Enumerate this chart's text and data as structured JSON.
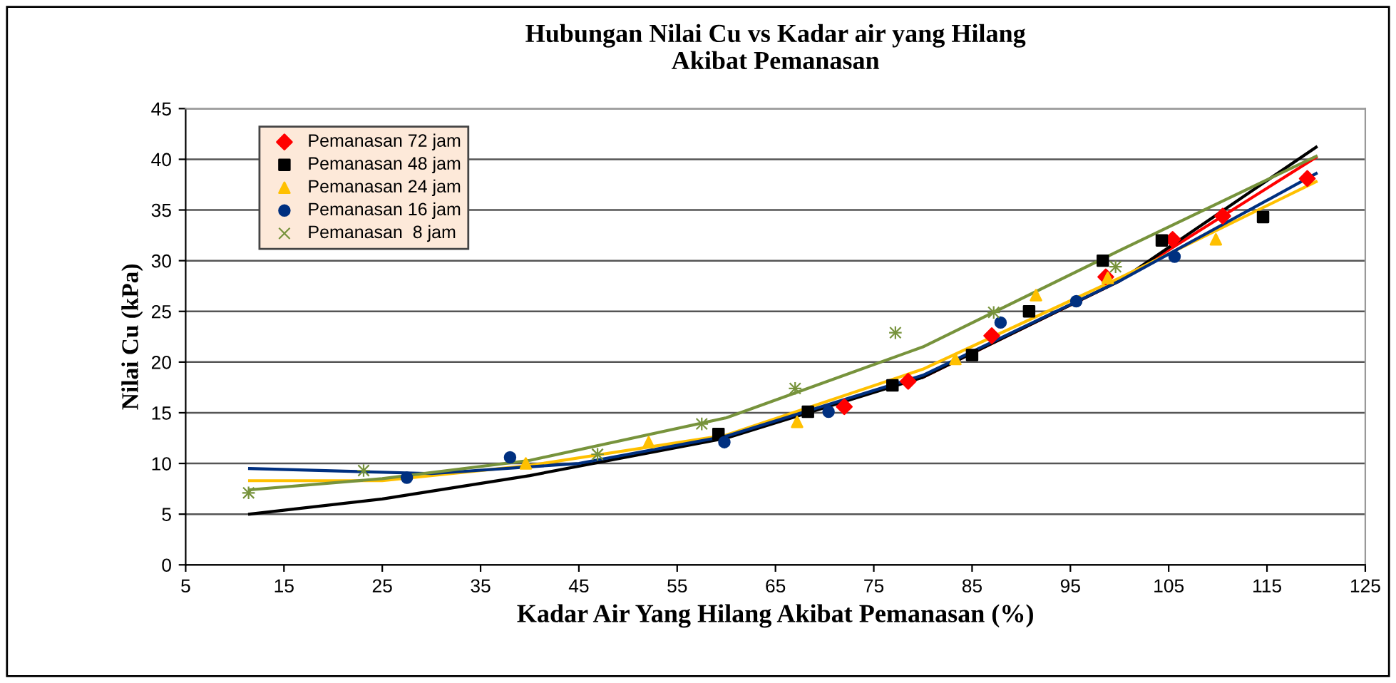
{
  "chart_data": {
    "type": "scatter",
    "title": "Hubungan Nilai Cu vs Kadar air yang Hilang\nAkibat Pemanasan",
    "xlabel": "Kadar Air Yang Hilang Akibat Pemanasan (%)",
    "ylabel": "Nilai Cu (kPa)",
    "xlim": [
      5,
      125
    ],
    "xticks": [
      5,
      15,
      25,
      35,
      45,
      55,
      65,
      75,
      85,
      95,
      105,
      115,
      125
    ],
    "ylim": [
      0,
      45
    ],
    "yticks": [
      0,
      5,
      10,
      15,
      20,
      25,
      30,
      35,
      40,
      45
    ],
    "grid": "y",
    "legend": "top left",
    "series": [
      {
        "name": "Pemanasan 72 jam",
        "color": "#ff0000",
        "marker": "diamond",
        "x": [
          72.0,
          78.5,
          87.0,
          98.6,
          105.4,
          110.5,
          119.1
        ],
        "values": [
          15.6,
          18.1,
          22.6,
          28.4,
          32.1,
          34.4,
          38.1
        ]
      },
      {
        "name": "Pemanasan 48 jam",
        "color": "#000000",
        "marker": "square",
        "x": [
          59.2,
          68.3,
          76.9,
          85.0,
          90.8,
          98.3,
          104.3,
          114.6
        ],
        "values": [
          12.9,
          15.1,
          17.7,
          20.7,
          25.0,
          30.0,
          32.0,
          34.3
        ]
      },
      {
        "name": "Pemanasan 24 jam",
        "color": "#ffc000",
        "marker": "triangle",
        "x": [
          39.6,
          52.1,
          67.2,
          83.3,
          91.5,
          98.8,
          109.8
        ],
        "values": [
          10.0,
          12.1,
          14.1,
          20.3,
          26.6,
          28.3,
          32.1
        ]
      },
      {
        "name": "Pemanasan 16 jam",
        "color": "#003080",
        "marker": "circle",
        "x": [
          27.5,
          38.0,
          59.8,
          70.4,
          87.9,
          95.6,
          105.6
        ],
        "values": [
          8.6,
          10.6,
          12.1,
          15.1,
          23.9,
          26.0,
          30.4
        ]
      },
      {
        "name": "Pemanasan  8 jam",
        "color": "#77933c",
        "marker": "cross",
        "x": [
          11.4,
          23.1,
          46.9,
          57.5,
          67.0,
          77.2,
          87.2,
          99.6
        ],
        "values": [
          7.1,
          9.3,
          10.9,
          13.9,
          17.4,
          22.9,
          24.9,
          29.4
        ]
      },
      {
        "type": "line",
        "color": "#ff0000",
        "x": [
          80,
          100,
          120
        ],
        "values": [
          18.5,
          28.0,
          40.2
        ]
      },
      {
        "type": "line",
        "color": "#000000",
        "x": [
          11.5,
          25,
          40,
          60,
          80,
          100,
          120
        ],
        "values": [
          5.0,
          6.5,
          8.8,
          12.5,
          18.5,
          28.0,
          41.2
        ]
      },
      {
        "type": "line",
        "color": "#ffc000",
        "x": [
          11.5,
          25,
          40,
          60,
          80,
          100,
          120
        ],
        "values": [
          8.3,
          8.3,
          9.8,
          12.8,
          19.3,
          28.3,
          37.8
        ]
      },
      {
        "type": "line",
        "color": "#003080",
        "x": [
          11.5,
          30,
          45,
          60,
          80,
          100,
          120
        ],
        "values": [
          9.5,
          9.0,
          10.0,
          12.7,
          18.7,
          28.0,
          38.6
        ]
      },
      {
        "type": "line",
        "color": "#77933c",
        "x": [
          11.5,
          25,
          40,
          60,
          80,
          100,
          120
        ],
        "values": [
          7.4,
          8.5,
          10.3,
          14.5,
          21.5,
          31.0,
          40.3
        ]
      }
    ]
  }
}
